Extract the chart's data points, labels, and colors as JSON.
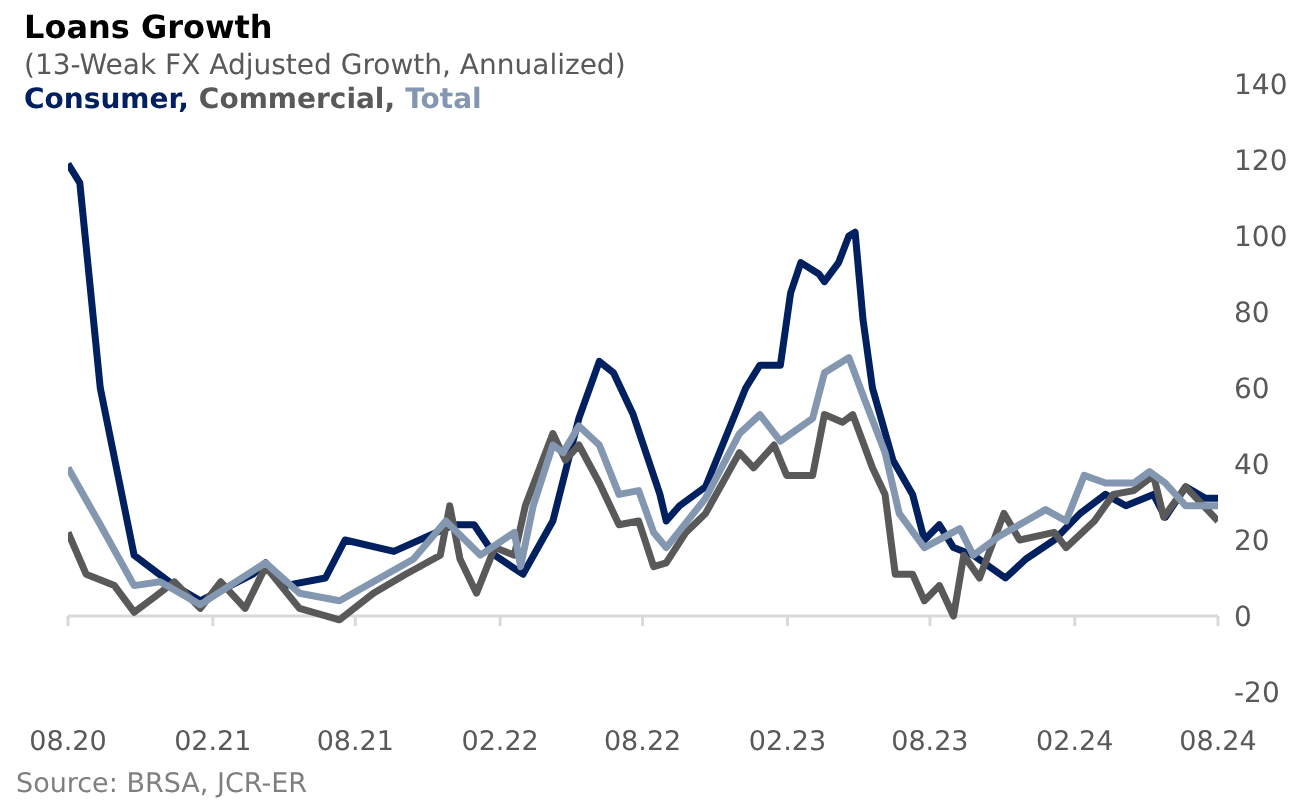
{
  "chart_data": {
    "type": "line",
    "title": "Loans Growth",
    "subtitle": "(13-Weak FX Adjusted Growth, Annualized)",
    "annotations": [
      "Source: BRSA, JCR-ER"
    ],
    "legend": "top left",
    "grid": false,
    "marker": "none",
    "line_style": "solid",
    "xlim": [
      "2020-08-01",
      "2024-08-01"
    ],
    "xticks": [
      {
        "value": "2020-08-01",
        "label": "08.20"
      },
      {
        "value": "2021-02-01",
        "label": "02.21"
      },
      {
        "value": "2021-08-01",
        "label": "08.21"
      },
      {
        "value": "2022-02-01",
        "label": "02.22"
      },
      {
        "value": "2022-08-01",
        "label": "08.22"
      },
      {
        "value": "2023-02-01",
        "label": "02.23"
      },
      {
        "value": "2023-08-01",
        "label": "08.23"
      },
      {
        "value": "2024-02-01",
        "label": "02.24"
      },
      {
        "value": "2024-08-01",
        "label": "08.24"
      }
    ],
    "ref_lines": [
      {
        "axis": "y",
        "value": 0,
        "color": "#d9d9d9"
      }
    ],
    "ylim": [
      -20,
      140
    ],
    "yticks": [
      -20,
      0,
      20,
      40,
      60,
      80,
      100,
      120,
      140
    ],
    "series": [
      {
        "name": "Consumer,",
        "color": "#002060",
        "x": [
          "2020-08-01",
          "2020-08-16",
          "2020-09-11",
          "2020-10-24",
          "2020-12-14",
          "2021-01-16",
          "2021-03-24",
          "2021-04-09",
          "2021-05-04",
          "2021-06-24",
          "2021-07-19",
          "2021-09-19",
          "2021-12-04",
          "2021-12-30",
          "2022-01-25",
          "2022-03-02",
          "2022-04-09",
          "2022-05-12",
          "2022-06-07",
          "2022-06-25",
          "2022-07-20",
          "2022-08-23",
          "2022-08-31",
          "2022-09-17",
          "2022-10-20",
          "2022-12-10",
          "2022-12-28",
          "2023-01-23",
          "2023-02-05",
          "2023-02-18",
          "2023-03-13",
          "2023-03-20",
          "2023-04-07",
          "2023-04-20",
          "2023-04-28",
          "2023-05-08",
          "2023-05-20",
          "2023-06-15",
          "2023-07-10",
          "2023-07-25",
          "2023-08-13",
          "2023-08-31",
          "2023-09-25",
          "2023-11-05",
          "2023-12-01",
          "2024-01-06",
          "2024-02-08",
          "2024-03-11",
          "2024-04-06",
          "2024-05-11",
          "2024-05-26",
          "2024-06-21",
          "2024-07-16",
          "2024-08-01"
        ],
        "values": [
          119,
          114,
          60,
          16,
          8,
          4,
          11,
          14,
          8,
          10,
          20,
          17,
          24,
          24,
          16,
          11,
          25,
          52,
          67,
          64,
          53,
          32,
          25,
          29,
          34,
          60,
          66,
          66,
          85,
          93,
          90,
          88,
          93,
          100,
          101,
          78,
          60,
          41,
          32,
          20,
          24,
          18,
          16,
          10,
          15,
          20,
          27,
          32,
          29,
          32,
          26,
          34,
          31,
          31
        ]
      },
      {
        "name": "Commercial,",
        "color": "#595959",
        "x": [
          "2020-08-01",
          "2020-08-24",
          "2020-09-29",
          "2020-10-24",
          "2020-11-19",
          "2020-12-14",
          "2021-01-16",
          "2021-02-11",
          "2021-03-14",
          "2021-04-09",
          "2021-05-22",
          "2021-07-12",
          "2021-08-24",
          "2021-10-04",
          "2021-11-17",
          "2021-11-29",
          "2021-12-12",
          "2022-01-02",
          "2022-01-25",
          "2022-02-19",
          "2022-03-05",
          "2022-04-09",
          "2022-04-25",
          "2022-05-12",
          "2022-06-07",
          "2022-07-02",
          "2022-07-27",
          "2022-08-15",
          "2022-08-31",
          "2022-09-25",
          "2022-10-20",
          "2022-12-02",
          "2022-12-20",
          "2023-01-15",
          "2023-01-31",
          "2023-03-05",
          "2023-03-20",
          "2023-04-12",
          "2023-04-25",
          "2023-05-20",
          "2023-06-05",
          "2023-06-18",
          "2023-07-10",
          "2023-07-25",
          "2023-08-13",
          "2023-08-31",
          "2023-09-13",
          "2023-10-03",
          "2023-11-03",
          "2023-11-23",
          "2024-01-06",
          "2024-01-21",
          "2024-02-26",
          "2024-03-21",
          "2024-04-16",
          "2024-05-11",
          "2024-05-24",
          "2024-06-21",
          "2024-08-01"
        ],
        "values": [
          22,
          11,
          8,
          1,
          5,
          9,
          2,
          9,
          2,
          13,
          2,
          -1,
          6,
          11,
          16,
          29,
          15,
          6,
          18,
          16,
          29,
          48,
          41,
          45,
          35,
          24,
          25,
          13,
          14,
          22,
          27,
          43,
          39,
          45,
          37,
          37,
          53,
          51,
          53,
          39,
          32,
          11,
          11,
          4,
          8,
          0,
          16,
          10,
          27,
          20,
          22,
          18,
          25,
          32,
          33,
          37,
          26,
          34,
          25
        ]
      },
      {
        "name": "Total",
        "color": "#8497b0",
        "x": [
          "2020-08-01",
          "2020-09-11",
          "2020-10-24",
          "2020-11-26",
          "2021-01-16",
          "2021-04-09",
          "2021-05-22",
          "2021-07-12",
          "2021-08-24",
          "2021-10-14",
          "2021-11-24",
          "2022-01-07",
          "2022-02-19",
          "2022-02-27",
          "2022-03-15",
          "2022-04-09",
          "2022-04-22",
          "2022-05-12",
          "2022-06-07",
          "2022-07-02",
          "2022-07-27",
          "2022-08-15",
          "2022-08-31",
          "2022-10-20",
          "2022-12-02",
          "2022-12-28",
          "2023-01-23",
          "2023-03-05",
          "2023-03-20",
          "2023-04-20",
          "2023-05-10",
          "2023-06-05",
          "2023-06-23",
          "2023-07-25",
          "2023-09-08",
          "2023-09-25",
          "2023-10-28",
          "2023-12-01",
          "2023-12-26",
          "2024-01-21",
          "2024-02-13",
          "2024-03-11",
          "2024-04-16",
          "2024-05-06",
          "2024-05-26",
          "2024-06-21",
          "2024-08-01"
        ],
        "values": [
          39,
          24,
          8,
          9,
          3,
          14,
          6,
          4,
          9,
          15,
          25,
          16,
          22,
          13,
          29,
          45,
          43,
          50,
          45,
          32,
          33,
          22,
          18,
          31,
          48,
          53,
          46,
          52,
          64,
          68,
          57,
          43,
          27,
          18,
          23,
          16,
          21,
          25,
          28,
          25,
          37,
          35,
          35,
          38,
          35,
          29,
          29
        ]
      }
    ]
  }
}
